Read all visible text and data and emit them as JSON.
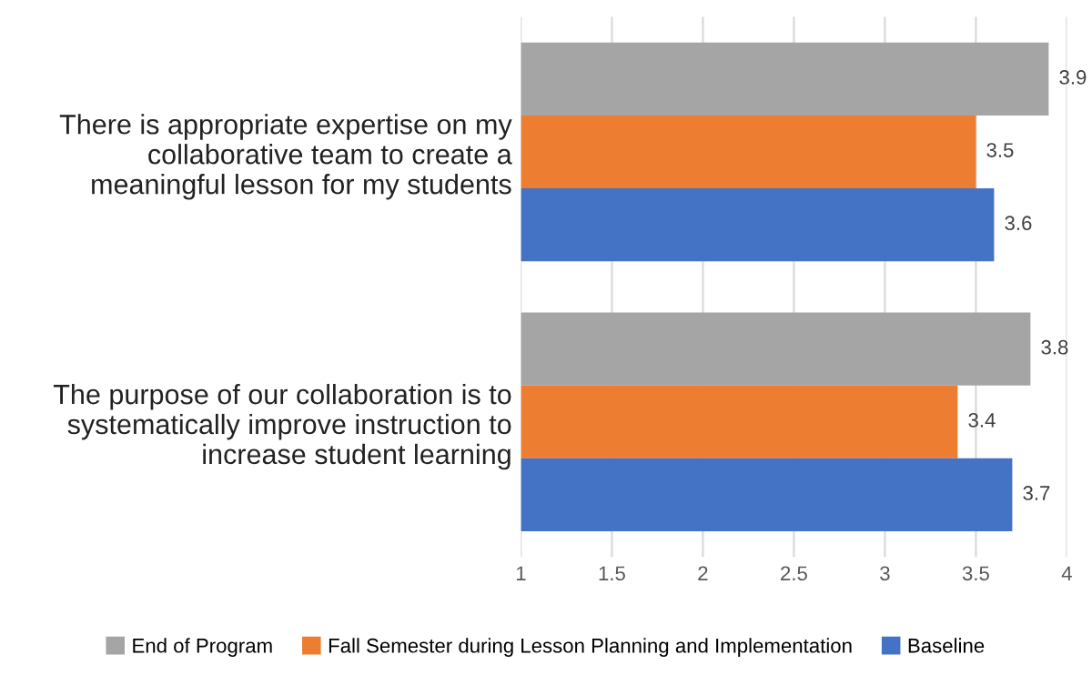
{
  "chart_data": {
    "type": "bar",
    "orientation": "horizontal",
    "categories": [
      "There is appropriate expertise on my\ncollaborative team to create a\nmeaningful lesson for my students",
      "The purpose of our collaboration is to\nsystematically improve instruction to\nincrease student learning"
    ],
    "series": [
      {
        "name": "End of Program",
        "color": "#a5a5a5",
        "values": [
          3.9,
          3.8
        ]
      },
      {
        "name": "Fall Semester during Lesson Planning and Implementation",
        "color": "#ed7d31",
        "values": [
          3.5,
          3.4
        ]
      },
      {
        "name": "Baseline",
        "color": "#4472c4",
        "values": [
          3.6,
          3.7
        ]
      }
    ],
    "xlim": [
      1,
      4
    ],
    "xticks": [
      1,
      1.5,
      2,
      2.5,
      3,
      3.5,
      4
    ],
    "grid": "x",
    "legend": "bottom",
    "data_labels": true
  }
}
